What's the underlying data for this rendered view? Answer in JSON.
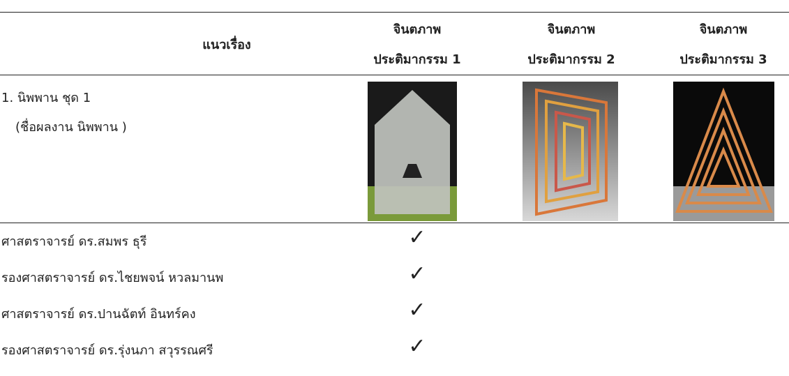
{
  "table": {
    "header": [
      "แนวเรื่อง",
      [
        "จินตภาพ",
        "ประติมากรรม 1"
      ],
      [
        "จินตภาพ",
        "ประติมากรรม 2"
      ],
      [
        "จินตภาพ",
        "ประติมากรรม 3"
      ]
    ],
    "work": [
      "1. นิพพาน ชุด 1",
      "(ชื่อผลงาน นิพพาน )"
    ],
    "rows": [
      [
        "ศาสตราจารย์ ดร.สมพร ธุรี",
        "✓"
      ],
      [
        "รองศาสตราจารย์ ดร.ไชยพจน์ หวลมานพ",
        "✓"
      ],
      [
        "ศาสตราจารย์ ดร.ปานฉัตท์ อินทร์คง",
        "✓"
      ],
      [
        "รองศาสตราจารย์ ดร.รุ่งนภา สวุรรณศรี",
        "✓"
      ]
    ]
  }
}
